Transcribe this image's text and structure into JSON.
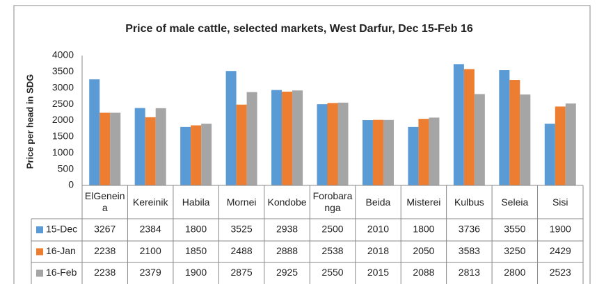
{
  "chart_data": {
    "type": "bar",
    "title": "Price of male cattle, selected markets, West Darfur, Dec 15-Feb 16",
    "y_label": "Price per head in SDG",
    "categories": [
      "ElGeneina",
      "Kereinik",
      "Habila",
      "Mornei",
      "Kondobe",
      "Forobaranga",
      "Beida",
      "Misterei",
      "Kulbus",
      "Seleia",
      "Sisi"
    ],
    "series": [
      {
        "name": "15-Dec",
        "color": "#5b9bd5",
        "values": [
          3267,
          2384,
          1800,
          3525,
          2938,
          2500,
          2010,
          1800,
          3736,
          3550,
          1900
        ]
      },
      {
        "name": "16-Jan",
        "color": "#ed7d31",
        "values": [
          2238,
          2100,
          1850,
          2488,
          2888,
          2538,
          2018,
          2050,
          3583,
          3250,
          2429
        ]
      },
      {
        "name": "16-Feb",
        "color": "#a5a5a5",
        "values": [
          2238,
          2379,
          1900,
          2875,
          2925,
          2550,
          2015,
          2088,
          2813,
          2800,
          2523
        ]
      }
    ],
    "ylim": [
      0,
      4000
    ],
    "yticks": [
      0,
      500,
      1000,
      1500,
      2000,
      2500,
      3000,
      3500,
      4000
    ],
    "grid": false
  }
}
